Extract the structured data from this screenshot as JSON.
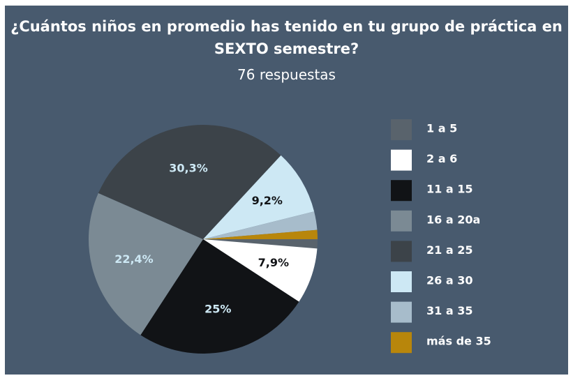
{
  "chart_data": {
    "type": "pie",
    "title": "¿Cuántos niños en promedio has tenido en tu grupo de práctica en SEXTO semestre?",
    "subtitle": "76 respuestas",
    "categories": [
      "1 a 5",
      "2 a 6",
      "11 a 15",
      "16 a 20a",
      "21 a 25",
      "26 a 30",
      "31 a 35",
      "más de 35"
    ],
    "values": [
      1.3,
      7.9,
      25,
      22.4,
      30.3,
      9.2,
      2.6,
      1.3
    ],
    "value_labels": [
      null,
      "7,9%",
      "25%",
      "22,4%",
      "30,3%",
      "9,2%",
      null,
      null
    ],
    "colors": [
      "#59636c",
      "#ffffff",
      "#111316",
      "#7b8a94",
      "#3c4349",
      "#cde8f4",
      "#a7bccb",
      "#b8860b"
    ],
    "legend": "right"
  }
}
